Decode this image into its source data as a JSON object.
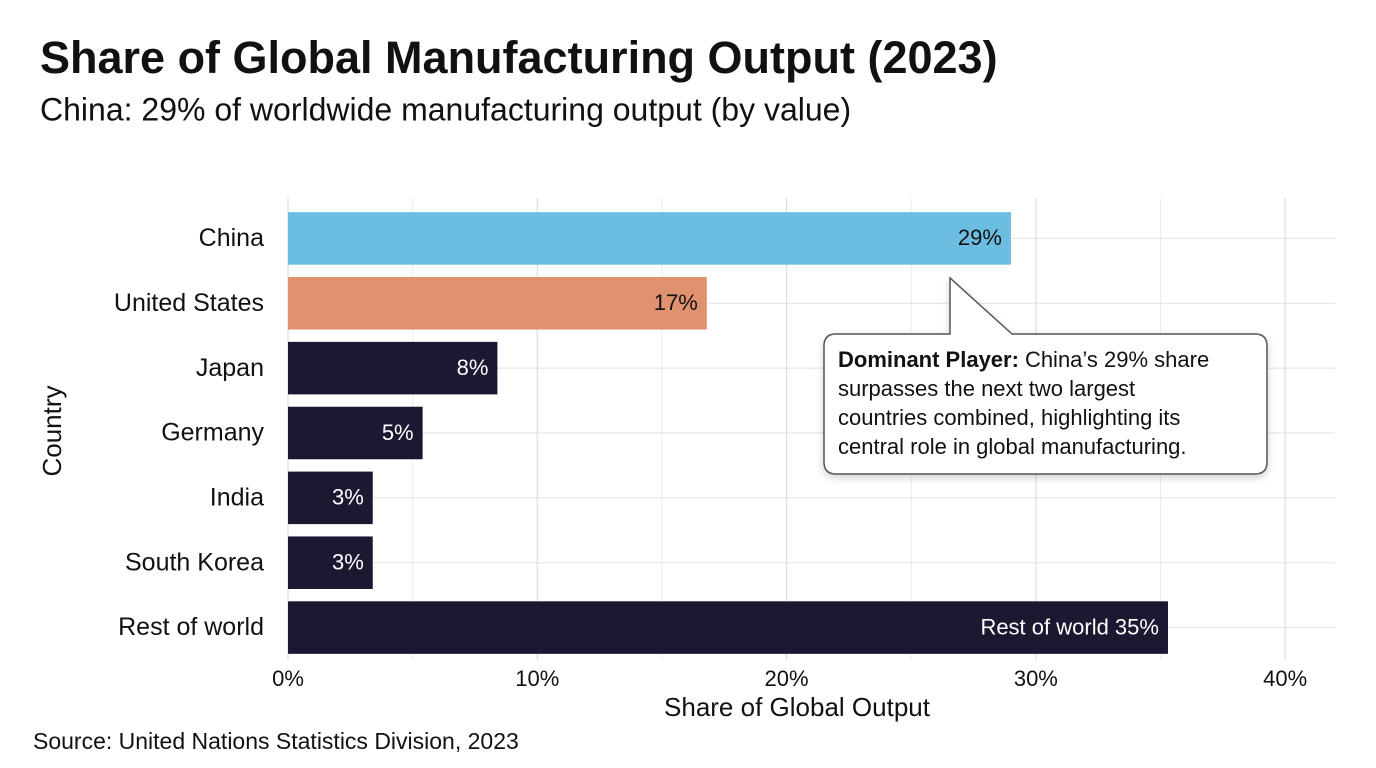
{
  "chart_data": {
    "type": "barh",
    "title": "Share of Global Manufacturing Output (2023)",
    "subtitle": "China: 29% of worldwide manufacturing output (by value)",
    "x_label": "Share of Global Output",
    "y_label": "Country",
    "source": "Source: United Nations Statistics Division, 2023",
    "categories": [
      "China",
      "United States",
      "Japan",
      "Germany",
      "India",
      "South Korea",
      "Rest of world"
    ],
    "values": [
      29,
      16.8,
      8.4,
      5.4,
      3.4,
      3.4,
      35.3
    ],
    "value_labels": [
      "29%",
      "17%",
      "8%",
      "5%",
      "3%",
      "3%",
      "Rest of world 35%"
    ],
    "colors": [
      "#6cbde2",
      "#e0916f",
      "#1c1832",
      "#1c1832",
      "#1c1832",
      "#1c1832",
      "#1c1832"
    ],
    "label_colors": [
      "#111111",
      "#111111",
      "#ffffff",
      "#ffffff",
      "#ffffff",
      "#ffffff",
      "#ffffff"
    ],
    "xlim": [
      0,
      42
    ],
    "xticks": [
      {
        "value": 0,
        "label": "0%"
      },
      {
        "value": 10,
        "label": "10%"
      },
      {
        "value": 20,
        "label": "20%"
      },
      {
        "value": 30,
        "label": "30%"
      },
      {
        "value": 40,
        "label": "40%"
      }
    ],
    "x_minor_ticks": [
      5,
      15,
      25,
      35
    ],
    "grid": true,
    "annotation": {
      "label": "Dominant Player:",
      "lines": [
        "China’s 29% share",
        "surpasses the next two largest",
        "countries combined, highlighting its",
        "central role in global manufacturing."
      ]
    }
  }
}
